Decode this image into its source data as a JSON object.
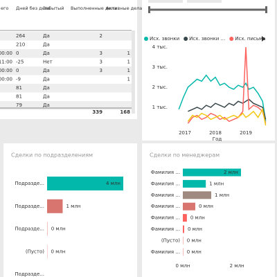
{
  "table": {
    "columns": [
      "его",
      "Дней без дела",
      "Забытый",
      "Выполненные дела",
      "Активные дела"
    ],
    "rows": [
      [
        null,
        264,
        "Да",
        2,
        null
      ],
      [
        null,
        210,
        "Да",
        null,
        null
      ],
      [
        "00:00",
        0,
        "Да",
        3,
        1
      ],
      [
        "11:00",
        -25,
        "Нет",
        3,
        1
      ],
      [
        "00:00",
        0,
        "Да",
        3,
        1
      ],
      [
        "00:00",
        -9,
        "Да",
        null,
        1
      ],
      [
        null,
        81,
        "Да",
        null,
        null
      ],
      [
        null,
        81,
        "Да",
        null,
        null
      ],
      [
        null,
        79,
        "Да",
        null,
        null
      ]
    ],
    "totals": [
      null,
      null,
      null,
      339,
      168
    ]
  },
  "chart_data": [
    {
      "type": "line",
      "xlabel": "Год",
      "x": [
        2016.8,
        2016.95,
        2017.1,
        2017.25,
        2017.4,
        2017.55,
        2017.7,
        2017.85,
        2018.0,
        2018.15,
        2018.3,
        2018.45,
        2018.6,
        2018.75,
        2018.9,
        2019.0,
        2019.1,
        2019.25,
        2019.4,
        2019.55,
        2019.65
      ],
      "series": [
        {
          "name": "Исх. звонки",
          "color": "#01b8aa",
          "values": [
            900,
            1500,
            2000,
            2200,
            2400,
            2300,
            2600,
            2300,
            2500,
            2100,
            2200,
            2000,
            1900,
            2100,
            2000,
            2200,
            1900,
            2000,
            1700,
            1300,
            300
          ]
        },
        {
          "name": "Исх. звонки ...",
          "color": "#374649",
          "values": [
            null,
            null,
            800,
            900,
            1000,
            900,
            1100,
            1000,
            1200,
            1100,
            1000,
            1200,
            1100,
            1300,
            1200,
            1300,
            1400,
            1200,
            1100,
            1000,
            400
          ]
        },
        {
          "name": "Исх. письма",
          "color": "#fd625e",
          "values": [
            null,
            null,
            200,
            500,
            600,
            400,
            500,
            700,
            600,
            400,
            500,
            300,
            400,
            500,
            800,
            4000,
            900,
            1100,
            1000,
            800,
            200
          ]
        },
        {
          "name": null,
          "color": "#f2c80f",
          "values": [
            null,
            null,
            300,
            600,
            500,
            700,
            600,
            400,
            500,
            600,
            400,
            500,
            600,
            500,
            700,
            500,
            600,
            800,
            500,
            900,
            100
          ]
        }
      ],
      "xlim": [
        2016.5,
        2019.75
      ],
      "xticks": [
        2017,
        2018,
        2019
      ],
      "ylim": [
        0,
        4300
      ],
      "yticks": [
        {
          "value": 1000,
          "label": "1 тыс."
        },
        {
          "value": 2000,
          "label": "2 тыс."
        },
        {
          "value": 3000,
          "label": "3 тыс."
        },
        {
          "value": 4000,
          "label": "4 тыс."
        }
      ]
    },
    {
      "type": "hbar",
      "title": "Сделки по подразделениям",
      "categories": [
        "Подразде...",
        "Подразде...",
        "Подразде...",
        "(Пусто)",
        "Подразде..."
      ],
      "values": [
        4.4,
        0.9,
        0.03,
        0.02,
        null
      ],
      "value_labels": [
        "4 млн",
        "1 млн",
        "0 млн",
        "0 млн",
        null
      ],
      "colors": [
        "#01b8aa",
        "#d9756f",
        "#f0a8a5",
        "#f0a8a5",
        null
      ],
      "xlim": [
        0,
        4.6
      ]
    },
    {
      "type": "hbar",
      "title": "Сделки по менеджерам",
      "categories": [
        "Фамилия ...",
        "Фамилия ...",
        "Фамилия ...",
        "Фамилия ...",
        "Фамилия ...",
        "Фамилия ...",
        "(Пусто)",
        "Фамилия ..."
      ],
      "values": [
        2.15,
        0.85,
        1.05,
        0.46,
        0.15,
        0.05,
        0.02,
        0.02
      ],
      "value_labels": [
        "2 млн",
        "1 млн",
        "1 млн",
        "0 млн",
        "0 млн",
        "0 млн",
        "0 млн",
        "0 млн"
      ],
      "colors": [
        "#01b8aa",
        "#01b8aa",
        "#a08a80",
        "#d9756f",
        "#fd625e",
        "#fd625e",
        "#f0a8a5",
        "#f0a8a5"
      ],
      "xlim": [
        0,
        3.2
      ],
      "xticks": [
        {
          "value": 0,
          "label": "0 млн"
        },
        {
          "value": 2,
          "label": "2 млн"
        }
      ]
    }
  ]
}
